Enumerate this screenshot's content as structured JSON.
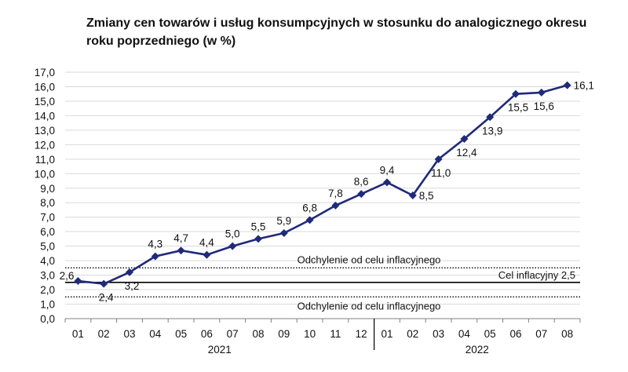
{
  "chart_data": {
    "type": "line",
    "title": "Zmiany cen towarów i usług konsumpcyjnych w stosunku do analogicznego okresu roku poprzedniego (w %)",
    "categories": [
      "01",
      "02",
      "03",
      "04",
      "05",
      "06",
      "07",
      "08",
      "09",
      "10",
      "11",
      "12",
      "01",
      "02",
      "03",
      "04",
      "05",
      "06",
      "07",
      "08"
    ],
    "year_groups": [
      {
        "label": "2021",
        "start": 0,
        "end": 11
      },
      {
        "label": "2022",
        "start": 12,
        "end": 19
      }
    ],
    "series": [
      {
        "values": [
          2.6,
          2.4,
          3.2,
          4.3,
          4.7,
          4.4,
          5.0,
          5.5,
          5.9,
          6.8,
          7.8,
          8.6,
          9.4,
          8.5,
          11.0,
          12.4,
          13.9,
          15.5,
          15.6,
          16.1
        ]
      }
    ],
    "data_labels": [
      "2,6",
      "2,4",
      "3,2",
      "4,3",
      "4,7",
      "4,4",
      "5,0",
      "5,5",
      "5,9",
      "6,8",
      "7,8",
      "8,6",
      "9,4",
      "8,5",
      "11,0",
      "12,4",
      "13,9",
      "15,5",
      "15,6",
      "16,1"
    ],
    "ylim": [
      0,
      17
    ],
    "y_step": 1,
    "y_tick_labels": [
      "0,0",
      "1,0",
      "2,0",
      "3,0",
      "4,0",
      "5,0",
      "6,0",
      "7,0",
      "8,0",
      "9,0",
      "10,0",
      "11,0",
      "12,0",
      "13,0",
      "14,0",
      "15,0",
      "16,0",
      "17,0"
    ],
    "grid": true,
    "reference_lines": [
      {
        "value": 3.5,
        "style": "dotted",
        "label": "Odchylenie od celu inflacyjnego"
      },
      {
        "value": 2.5,
        "style": "solid",
        "label": "Cel inflacyjny 2,5"
      },
      {
        "value": 1.5,
        "style": "dotted",
        "label": "Odchylenie od celu inflacyjnego"
      }
    ],
    "colors": {
      "series": "#1f2a7a",
      "grid": "#d9d9d9",
      "axis": "#808080",
      "reference": "#000000"
    }
  }
}
